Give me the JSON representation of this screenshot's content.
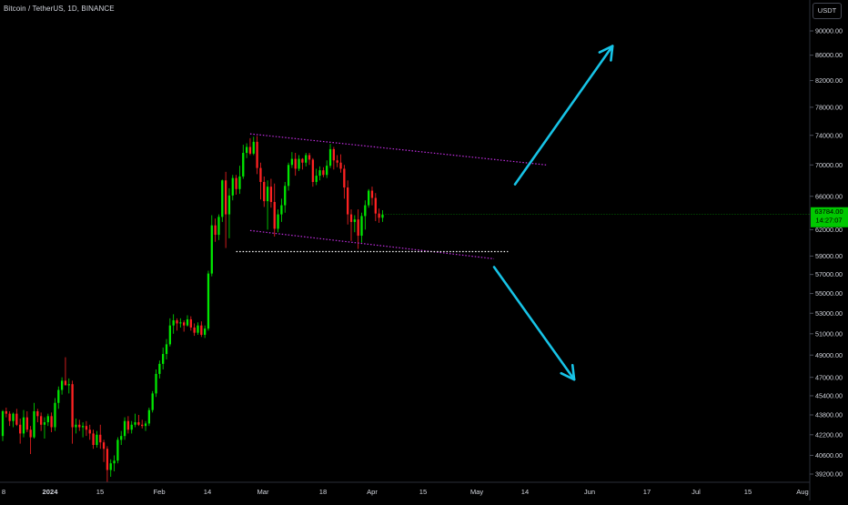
{
  "symbol_title": "Bitcoin / TetherUS, 1D, BINANCE",
  "currency_button": "USDT",
  "last_price_label": "63784.00",
  "countdown_label": "14:27:07",
  "colors": {
    "background": "#000000",
    "up": "#00e600",
    "down": "#ff2222",
    "wedge_line": "#c12ee0",
    "support_line": "#ffffff",
    "arrow": "#17c3e6",
    "last_price_bg": "#00c800",
    "text": "#d1d4dc"
  },
  "chart_data": {
    "type": "candlestick",
    "title": "Bitcoin / TetherUS, 1D, BINANCE",
    "x_ticks": [
      "8",
      "2024",
      "15",
      "Feb",
      "14",
      "Mar",
      "18",
      "Apr",
      "15",
      "May",
      "14",
      "Jun",
      "17",
      "Jul",
      "15",
      "Aug"
    ],
    "y_ticks": [
      90000,
      86000,
      82000,
      78000,
      74000,
      70000,
      66000,
      62000,
      59000,
      57000,
      55000,
      53000,
      51000,
      49000,
      47000,
      45400,
      43800,
      42200,
      40600,
      39200
    ],
    "y_tick_labels": [
      "90000.00",
      "86000.00",
      "82000.00",
      "78000.00",
      "74000.00",
      "70000.00",
      "66000.00",
      "62000.00",
      "59000.00",
      "57000.00",
      "55000.00",
      "53000.00",
      "51000.00",
      "49000.00",
      "47000.00",
      "45400.00",
      "43800.00",
      "42200.00",
      "40600.00",
      "39200.00"
    ],
    "ylim": [
      38500,
      93000
    ],
    "y_scale": "log",
    "last_price": 63784,
    "candles_ohlc": [
      [
        42100,
        44200,
        41700,
        44100
      ],
      [
        44100,
        44400,
        43600,
        43900
      ],
      [
        43900,
        44100,
        42900,
        43300
      ],
      [
        43300,
        44000,
        42800,
        43900
      ],
      [
        43900,
        44300,
        42900,
        43000
      ],
      [
        43000,
        43500,
        41500,
        42300
      ],
      [
        42300,
        44200,
        42000,
        43600
      ],
      [
        43600,
        44100,
        42400,
        42600
      ],
      [
        42600,
        42900,
        40700,
        42000
      ],
      [
        42000,
        44800,
        41900,
        44100
      ],
      [
        44100,
        44300,
        43200,
        43700
      ],
      [
        43700,
        44000,
        42500,
        43000
      ],
      [
        43000,
        43600,
        41900,
        43200
      ],
      [
        43200,
        43900,
        42900,
        43700
      ],
      [
        43700,
        44000,
        42400,
        42800
      ],
      [
        42800,
        45200,
        42500,
        44800
      ],
      [
        44800,
        46200,
        44300,
        45900
      ],
      [
        45900,
        47000,
        45500,
        46700
      ],
      [
        46700,
        48800,
        46400,
        46300
      ],
      [
        46300,
        46900,
        45600,
        46400
      ],
      [
        46400,
        46700,
        41500,
        42800
      ],
      [
        42800,
        43500,
        42300,
        43000
      ],
      [
        43000,
        43400,
        42500,
        42800
      ],
      [
        42800,
        43200,
        42000,
        42900
      ],
      [
        42900,
        43300,
        42100,
        42600
      ],
      [
        42600,
        43000,
        41800,
        42300
      ],
      [
        42300,
        42600,
        41100,
        41400
      ],
      [
        41400,
        42500,
        41200,
        42200
      ],
      [
        42200,
        43000,
        41100,
        41600
      ],
      [
        41600,
        41800,
        40100,
        41100
      ],
      [
        41100,
        41300,
        38600,
        39500
      ],
      [
        39500,
        40300,
        39000,
        40000
      ],
      [
        40000,
        40600,
        39400,
        40200
      ],
      [
        40200,
        42000,
        40000,
        41800
      ],
      [
        41800,
        42500,
        41400,
        42100
      ],
      [
        42100,
        43600,
        41800,
        43300
      ],
      [
        43300,
        43700,
        42300,
        42600
      ],
      [
        42600,
        43300,
        42300,
        43000
      ],
      [
        43000,
        43900,
        42800,
        43200
      ],
      [
        43200,
        43800,
        42900,
        43000
      ],
      [
        43000,
        43400,
        42700,
        42900
      ],
      [
        42900,
        43300,
        42500,
        43100
      ],
      [
        43100,
        44400,
        42900,
        44200
      ],
      [
        44200,
        45800,
        44000,
        45600
      ],
      [
        45600,
        47700,
        45300,
        47300
      ],
      [
        47300,
        48500,
        46900,
        48200
      ],
      [
        48200,
        49700,
        47700,
        49100
      ],
      [
        49100,
        50500,
        48600,
        50000
      ],
      [
        50000,
        52500,
        49800,
        51800
      ],
      [
        51800,
        52900,
        51000,
        52300
      ],
      [
        52300,
        52500,
        51300,
        52000
      ],
      [
        52000,
        52500,
        51600,
        52100
      ],
      [
        52100,
        52300,
        51200,
        51800
      ],
      [
        51800,
        52800,
        51700,
        52400
      ],
      [
        52400,
        52700,
        51300,
        51600
      ],
      [
        51600,
        52000,
        50800,
        51100
      ],
      [
        51100,
        52100,
        50900,
        51800
      ],
      [
        51800,
        52200,
        50700,
        50900
      ],
      [
        50900,
        51800,
        50600,
        51500
      ],
      [
        51500,
        57400,
        51300,
        57100
      ],
      [
        57100,
        63700,
        56800,
        62500
      ],
      [
        62500,
        63300,
        60600,
        61400
      ],
      [
        61400,
        63800,
        60800,
        63500
      ],
      [
        63500,
        68100,
        62900,
        68000
      ],
      [
        68000,
        69100,
        59900,
        63800
      ],
      [
        63800,
        67000,
        61000,
        66100
      ],
      [
        66100,
        68700,
        65500,
        68300
      ],
      [
        68300,
        68700,
        66200,
        66900
      ],
      [
        66900,
        69900,
        66300,
        68500
      ],
      [
        68500,
        72700,
        68200,
        71600
      ],
      [
        71600,
        72900,
        70900,
        72400
      ],
      [
        72400,
        73600,
        71300,
        71500
      ],
      [
        71500,
        73800,
        71300,
        73100
      ],
      [
        73100,
        73900,
        68800,
        69600
      ],
      [
        69600,
        70300,
        65600,
        67800
      ],
      [
        67800,
        68500,
        64700,
        65400
      ],
      [
        65400,
        68000,
        62000,
        67200
      ],
      [
        67200,
        68200,
        64600,
        65300
      ],
      [
        65300,
        67600,
        61200,
        62100
      ],
      [
        62100,
        64400,
        61700,
        63800
      ],
      [
        63800,
        65700,
        62900,
        64900
      ],
      [
        64900,
        67800,
        64000,
        67300
      ],
      [
        67300,
        70300,
        66700,
        70000
      ],
      [
        70000,
        71700,
        69600,
        70800
      ],
      [
        70800,
        71600,
        68600,
        69500
      ],
      [
        69500,
        71300,
        69200,
        70800
      ],
      [
        70800,
        70900,
        69400,
        70300
      ],
      [
        70300,
        71600,
        69800,
        71300
      ],
      [
        71300,
        71600,
        70000,
        70700
      ],
      [
        70700,
        70900,
        67200,
        67800
      ],
      [
        67800,
        69500,
        67400,
        68600
      ],
      [
        68600,
        69800,
        68000,
        69300
      ],
      [
        69300,
        69700,
        68400,
        68700
      ],
      [
        68700,
        70600,
        68300,
        69900
      ],
      [
        69900,
        72800,
        69600,
        72100
      ],
      [
        72100,
        72400,
        69400,
        70600
      ],
      [
        70600,
        71300,
        69700,
        70300
      ],
      [
        70300,
        71400,
        69000,
        69500
      ],
      [
        69500,
        70000,
        65700,
        67100
      ],
      [
        67100,
        68000,
        62600,
        63800
      ],
      [
        63800,
        64400,
        60700,
        62900
      ],
      [
        62900,
        63700,
        61700,
        63200
      ],
      [
        63200,
        64400,
        59800,
        61300
      ],
      [
        61300,
        64000,
        60500,
        63600
      ],
      [
        63600,
        65500,
        62000,
        64900
      ],
      [
        64900,
        66900,
        64600,
        66700
      ],
      [
        66700,
        67200,
        64900,
        65800
      ],
      [
        65800,
        66400,
        63000,
        63900
      ],
      [
        63900,
        64500,
        62800,
        63400
      ],
      [
        63400,
        64300,
        62900,
        63784
      ]
    ],
    "annotations": [
      {
        "type": "trend_line",
        "name": "wedge-upper",
        "from": [
          71,
          74200
        ],
        "to": [
          156,
          70000
        ]
      },
      {
        "type": "trend_line",
        "name": "wedge-lower",
        "from": [
          71,
          61900
        ],
        "to": [
          141,
          58700
        ]
      },
      {
        "type": "horizontal_segment",
        "name": "support-level",
        "from": [
          67,
          59500
        ],
        "to": [
          145,
          59500
        ]
      },
      {
        "type": "arrow",
        "name": "breakout-up-arrow",
        "from": [
          147,
          67500
        ],
        "to": [
          175,
          87500
        ]
      },
      {
        "type": "arrow",
        "name": "breakdown-down-arrow",
        "from": [
          141,
          57800
        ],
        "to": [
          164,
          46800
        ]
      }
    ]
  }
}
